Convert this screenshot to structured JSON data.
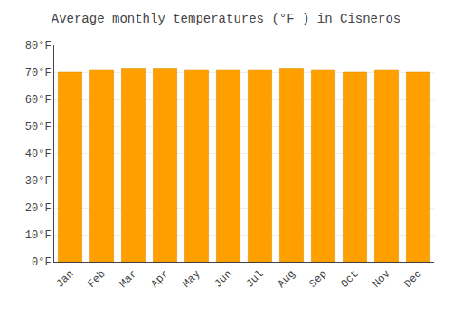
{
  "chart_data": {
    "type": "bar",
    "title": "Average monthly temperatures (°F ) in Cisneros",
    "categories": [
      "Jan",
      "Feb",
      "Mar",
      "Apr",
      "May",
      "Jun",
      "Jul",
      "Aug",
      "Sep",
      "Oct",
      "Nov",
      "Dec"
    ],
    "values": [
      70.0,
      71.0,
      71.5,
      71.5,
      71.0,
      71.0,
      71.0,
      71.5,
      71.0,
      70.0,
      71.0,
      70.0
    ],
    "color": "#FFA000",
    "ylim": [
      0,
      80
    ],
    "yticks": [
      {
        "value": 0,
        "label": "0°F"
      },
      {
        "value": 10,
        "label": "10°F"
      },
      {
        "value": 20,
        "label": "20°F"
      },
      {
        "value": 30,
        "label": "30°F"
      },
      {
        "value": 40,
        "label": "40°F"
      },
      {
        "value": 50,
        "label": "50°F"
      },
      {
        "value": 60,
        "label": "60°F"
      },
      {
        "value": 70,
        "label": "70°F"
      },
      {
        "value": 80,
        "label": "80°F"
      }
    ],
    "grid": true
  }
}
